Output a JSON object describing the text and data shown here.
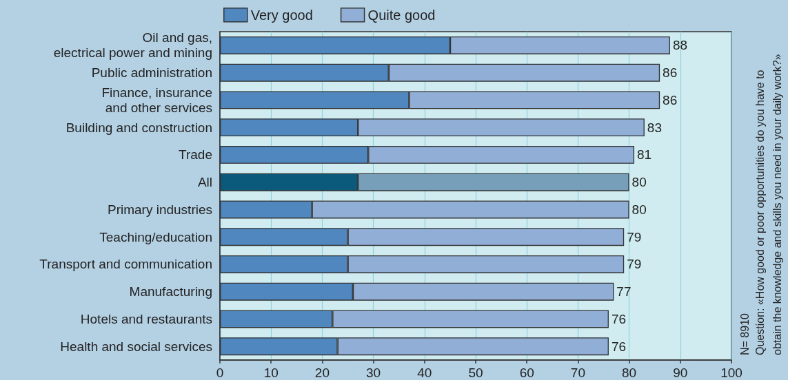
{
  "chart_data": {
    "type": "bar",
    "orientation": "horizontal",
    "stacked": true,
    "categories": [
      "Oil and gas,\nelectrical power and mining",
      "Public administration",
      "Finance, insurance\nand other services",
      "Building and construction",
      "Trade",
      "All",
      "Primary industries",
      "Teaching/education",
      "Transport and communication",
      "Manufacturing",
      "Hotels and restaurants",
      "Health and social services"
    ],
    "series": [
      {
        "name": "Very good",
        "color": "#4f87be",
        "colors": [
          "#4f87be",
          "#4f87be",
          "#4f87be",
          "#4f87be",
          "#4f87be",
          "#0b5a7b",
          "#4f87be",
          "#4f87be",
          "#4f87be",
          "#4f87be",
          "#4f87be",
          "#4f87be"
        ],
        "values": [
          45,
          33,
          37,
          27,
          29,
          27,
          18,
          25,
          25,
          26,
          22,
          23
        ]
      },
      {
        "name": "Quite good",
        "color": "#90aed6",
        "colors": [
          "#90aed6",
          "#90aed6",
          "#90aed6",
          "#90aed6",
          "#90aed6",
          "#779fba",
          "#90aed6",
          "#90aed6",
          "#90aed6",
          "#90aed6",
          "#90aed6",
          "#90aed6"
        ],
        "values": [
          43,
          53,
          49,
          56,
          52,
          53,
          62,
          54,
          54,
          51,
          54,
          53
        ]
      }
    ],
    "totals": [
      "88",
      "86",
      "86",
      "83",
      "81",
      "80",
      "80",
      "79",
      "79",
      "77",
      "76",
      "76"
    ],
    "xlim": [
      0,
      100
    ],
    "xticks": [
      0,
      10,
      20,
      30,
      40,
      50,
      60,
      70,
      80,
      90,
      100
    ],
    "grid": "x",
    "legend": "top left",
    "annotations": [
      "N= 8910",
      "Question: «How good or poor opportunities do you have to obtain the knowledge and skills you need in your daily work?»"
    ]
  }
}
